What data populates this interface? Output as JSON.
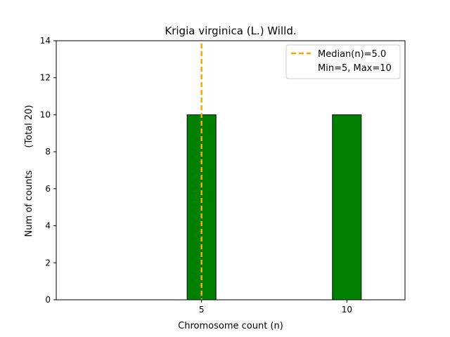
{
  "chart_data": {
    "type": "bar",
    "title": "Krigia virginica (L.) Willd.",
    "xlabel": "Chromosome count (n)",
    "ylabel": "Num of counts",
    "ylabel_total": "(Total 20)",
    "categories": [
      5,
      10
    ],
    "values": [
      10,
      10
    ],
    "bar_color": "#008000",
    "bar_edge_color": "#000000",
    "xlim": [
      0,
      12
    ],
    "ylim": [
      0,
      14
    ],
    "xticks": [
      5,
      10
    ],
    "yticks": [
      0,
      2,
      4,
      6,
      8,
      10,
      12,
      14
    ],
    "grid": false,
    "legend_position": "top-right",
    "median": {
      "value": 5.0,
      "color": "#ffa500",
      "style": "dashed"
    },
    "legend": [
      {
        "label": "Median(n)=5.0",
        "marker": "dashed-line"
      },
      {
        "label": "Min=5, Max=10",
        "marker": "none"
      }
    ]
  }
}
